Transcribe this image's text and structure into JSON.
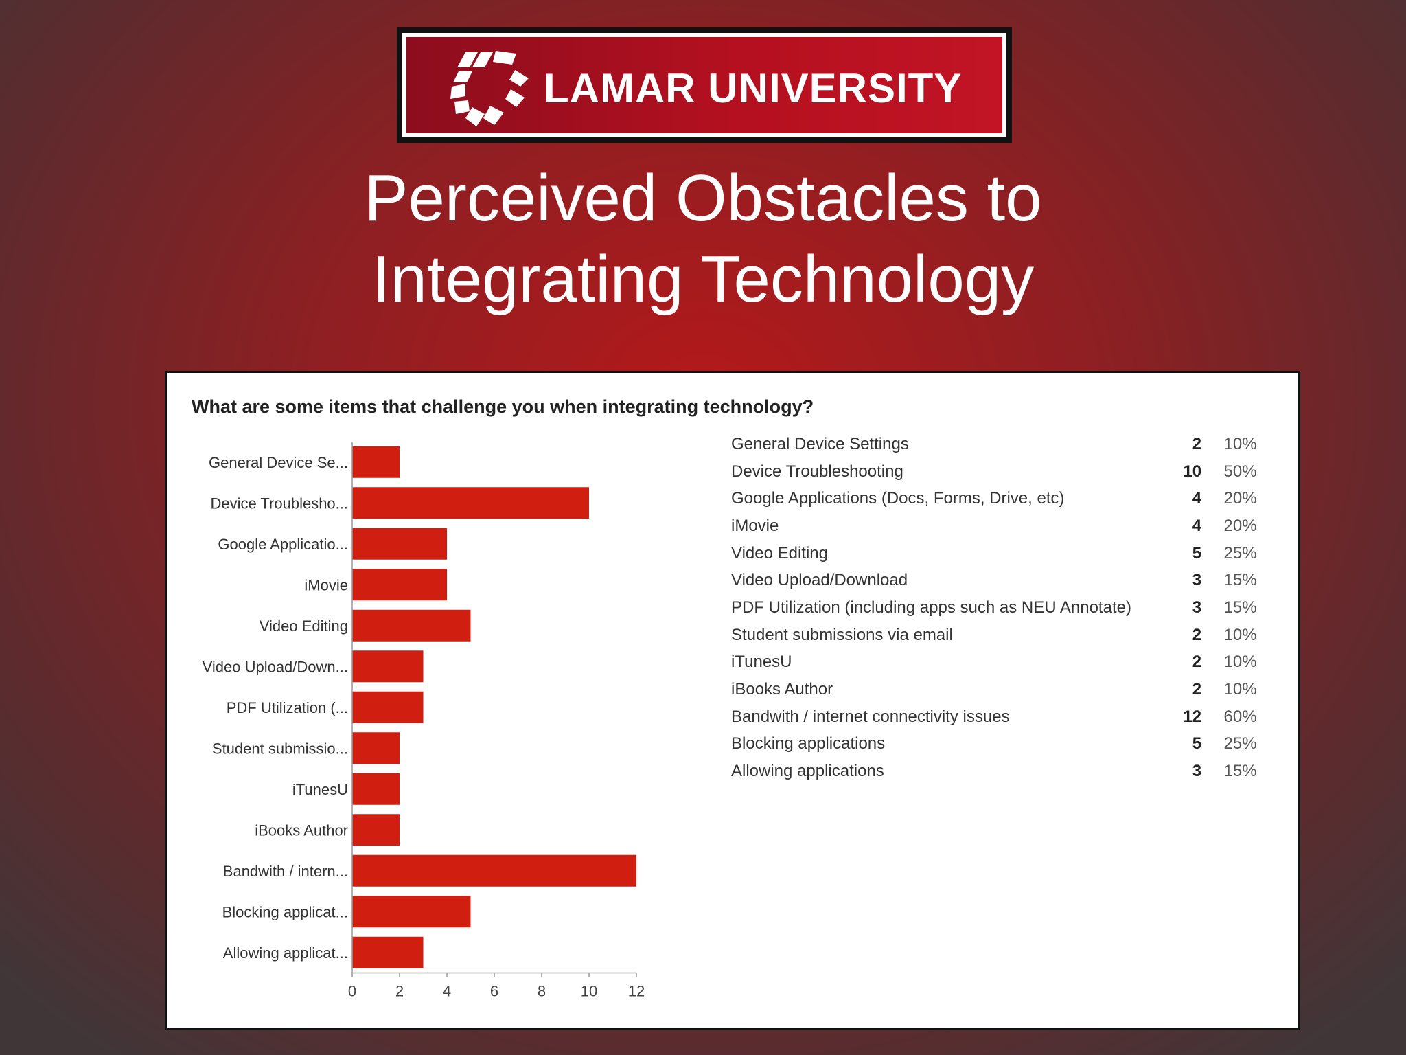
{
  "logo": {
    "text": "LAMAR UNIVERSITY"
  },
  "title": {
    "line1": "Perceived Obstacles to",
    "line2": "Integrating Technology"
  },
  "colors": {
    "bar": "#d01e10",
    "banner": "#a8101f",
    "background": "#8e1f22"
  },
  "summary": {
    "rows": [
      {
        "label": "General Device Settings",
        "count": "2",
        "percent": "10%"
      },
      {
        "label": "Device Troubleshooting",
        "count": "10",
        "percent": "50%"
      },
      {
        "label": "Google Applications (Docs, Forms, Drive, etc)",
        "count": "4",
        "percent": "20%"
      },
      {
        "label": "iMovie",
        "count": "4",
        "percent": "20%"
      },
      {
        "label": "Video Editing",
        "count": "5",
        "percent": "25%"
      },
      {
        "label": "Video Upload/Download",
        "count": "3",
        "percent": "15%"
      },
      {
        "label": "PDF Utilization (including apps such as NEU Annotate)",
        "count": "3",
        "percent": "15%"
      },
      {
        "label": "Student submissions via email",
        "count": "2",
        "percent": "10%"
      },
      {
        "label": "iTunesU",
        "count": "2",
        "percent": "10%"
      },
      {
        "label": "iBooks Author",
        "count": "2",
        "percent": "10%"
      },
      {
        "label": "Bandwith / internet connectivity issues",
        "count": "12",
        "percent": "60%"
      },
      {
        "label": "Blocking applications",
        "count": "5",
        "percent": "25%"
      },
      {
        "label": "Allowing applications",
        "count": "3",
        "percent": "15%"
      }
    ]
  },
  "chart_data": {
    "type": "bar",
    "orientation": "horizontal",
    "title": "What are some items that challenge you when integrating technology?",
    "categories": [
      "General Device Se...",
      "Device Troublesho...",
      "Google Applicatio...",
      "iMovie",
      "Video Editing",
      "Video Upload/Down...",
      "PDF Utilization (...",
      "Student submissio...",
      "iTunesU",
      "iBooks Author",
      "Bandwith / intern...",
      "Blocking applicat...",
      "Allowing applicat..."
    ],
    "values": [
      2,
      10,
      4,
      4,
      5,
      3,
      3,
      2,
      2,
      2,
      12,
      5,
      3
    ],
    "xlim": [
      0,
      12
    ],
    "xticks": [
      "0",
      "2",
      "4",
      "6",
      "8",
      "10",
      "12"
    ],
    "grid": false,
    "xlabel": "",
    "ylabel": ""
  }
}
